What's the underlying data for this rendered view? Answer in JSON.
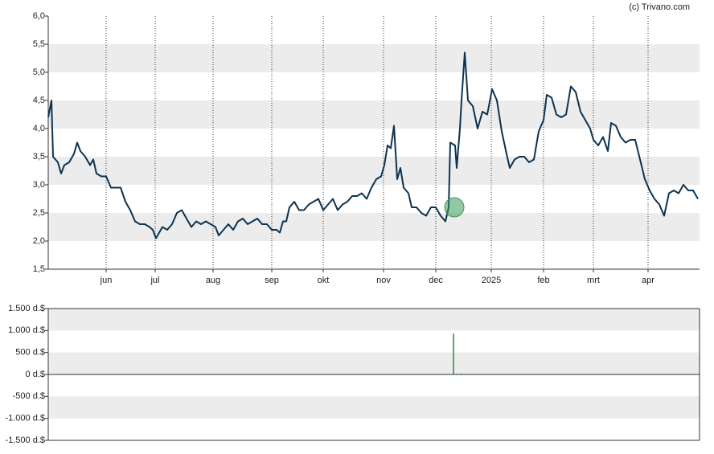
{
  "chart_data": [
    {
      "type": "line",
      "watermark": "(c) Trivano.com",
      "x": [
        0,
        2,
        3,
        6,
        8,
        10,
        13,
        16,
        18,
        20,
        23,
        26,
        28,
        30,
        33,
        36,
        39,
        42,
        45,
        48,
        51,
        54,
        57,
        60,
        63,
        65,
        67,
        69,
        71,
        74,
        77,
        80,
        83,
        86,
        89,
        92,
        95,
        98,
        101,
        104,
        106,
        109,
        112,
        115,
        118,
        121,
        124,
        127,
        130,
        133,
        136,
        139,
        142,
        144,
        146,
        148,
        150,
        153,
        156,
        159,
        162,
        165,
        168,
        171,
        174,
        177,
        180,
        183,
        186,
        189,
        192,
        195,
        198,
        201,
        204,
        207,
        209,
        211,
        213,
        215,
        217,
        219,
        221,
        224,
        226,
        229,
        232,
        235,
        238,
        241,
        244,
        247,
        249,
        250,
        253,
        254,
        256,
        257,
        259,
        261,
        264,
        267,
        270,
        273,
        276,
        279,
        282,
        285,
        287,
        290,
        293,
        296,
        299,
        302,
        305,
        308,
        310,
        313,
        316,
        319,
        322,
        325,
        328,
        331,
        334,
        337,
        339,
        342,
        345,
        348,
        350,
        353,
        356,
        359,
        362,
        365,
        368,
        371,
        374,
        377,
        380,
        383,
        386,
        389,
        392,
        395,
        398,
        401,
        404
      ],
      "series": [
        {
          "color": "#0d3350",
          "values": [
            4.2,
            4.5,
            3.5,
            3.4,
            3.2,
            3.35,
            3.4,
            3.55,
            3.75,
            3.6,
            3.5,
            3.35,
            3.45,
            3.2,
            3.15,
            3.15,
            2.95,
            2.95,
            2.95,
            2.7,
            2.55,
            2.35,
            2.3,
            2.3,
            2.25,
            2.2,
            2.05,
            2.15,
            2.25,
            2.2,
            2.3,
            2.5,
            2.55,
            2.4,
            2.25,
            2.35,
            2.3,
            2.35,
            2.3,
            2.25,
            2.1,
            2.2,
            2.3,
            2.2,
            2.35,
            2.4,
            2.3,
            2.35,
            2.4,
            2.3,
            2.3,
            2.2,
            2.2,
            2.15,
            2.35,
            2.35,
            2.6,
            2.7,
            2.55,
            2.55,
            2.65,
            2.7,
            2.75,
            2.55,
            2.65,
            2.75,
            2.55,
            2.65,
            2.7,
            2.8,
            2.8,
            2.85,
            2.75,
            2.95,
            3.1,
            3.15,
            3.35,
            3.7,
            3.65,
            4.05,
            3.1,
            3.3,
            2.95,
            2.85,
            2.6,
            2.6,
            2.5,
            2.45,
            2.6,
            2.6,
            2.45,
            2.35,
            2.6,
            3.75,
            3.7,
            3.3,
            4.0,
            4.5,
            5.35,
            4.5,
            4.4,
            4.0,
            4.3,
            4.25,
            4.7,
            4.5,
            3.95,
            3.55,
            3.3,
            3.45,
            3.5,
            3.5,
            3.4,
            3.45,
            3.95,
            4.15,
            4.6,
            4.55,
            4.25,
            4.2,
            4.25,
            4.75,
            4.65,
            4.3,
            4.15,
            4.0,
            3.8,
            3.7,
            3.85,
            3.6,
            4.1,
            4.05,
            3.85,
            3.75,
            3.8,
            3.8,
            3.45,
            3.1,
            2.9,
            2.75,
            2.65,
            2.45,
            2.85,
            2.9,
            2.85,
            3.0,
            2.9,
            2.9,
            2.75
          ]
        }
      ],
      "marker": {
        "x": 252.5,
        "y": 2.6,
        "color": "#3a9a5a"
      },
      "xlim": [
        0,
        405
      ],
      "xticks": [
        {
          "value": 36,
          "label": "jun"
        },
        {
          "value": 66.5,
          "label": "jul"
        },
        {
          "value": 102.5,
          "label": "aug"
        },
        {
          "value": 139,
          "label": "sep"
        },
        {
          "value": 171,
          "label": "okt"
        },
        {
          "value": 208.5,
          "label": "nov"
        },
        {
          "value": 241,
          "label": "dec"
        },
        {
          "value": 275.5,
          "label": "2025"
        },
        {
          "value": 308,
          "label": "feb"
        },
        {
          "value": 339,
          "label": "mrt"
        },
        {
          "value": 373,
          "label": "apr"
        }
      ],
      "ylim": [
        1.5,
        6
      ],
      "yticks": [
        {
          "value": 1.5,
          "label": "1,5"
        },
        {
          "value": 2,
          "label": "2,0"
        },
        {
          "value": 2.5,
          "label": "2,5"
        },
        {
          "value": 3,
          "label": "3,0"
        },
        {
          "value": 3.5,
          "label": "3,5"
        },
        {
          "value": 4,
          "label": "4,0"
        },
        {
          "value": 4.5,
          "label": "4,5"
        },
        {
          "value": 5,
          "label": "5,0"
        },
        {
          "value": 5.5,
          "label": "5,5"
        },
        {
          "value": 6,
          "label": "6,0"
        }
      ],
      "grid": "bands"
    },
    {
      "type": "bar",
      "x": [
        252,
        254,
        257
      ],
      "values": [
        930,
        20,
        20
      ],
      "color": "#2e8b3e",
      "xlim": [
        0,
        405
      ],
      "ylim": [
        -1500,
        1500
      ],
      "yticks": [
        {
          "value": -1500,
          "label": "-1.500 d.$"
        },
        {
          "value": -1000,
          "label": "-1.000 d.$"
        },
        {
          "value": -500,
          "label": "-500 d.$"
        },
        {
          "value": 0,
          "label": "0 d.$"
        },
        {
          "value": 500,
          "label": "500 d.$"
        },
        {
          "value": 1000,
          "label": "1.000 d.$"
        },
        {
          "value": 1500,
          "label": "1.500 d.$"
        }
      ],
      "grid": "bands"
    }
  ]
}
